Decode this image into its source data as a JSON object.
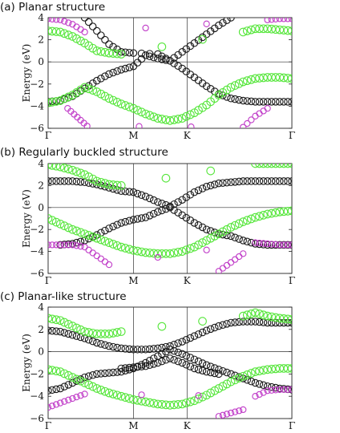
{
  "colors": {
    "black_band": "#1a1a1a",
    "green_band": "#55e63a",
    "magenta_band": "#c03cc8",
    "grey_band": "#b8b8b8"
  },
  "chart_data": [
    {
      "type": "scatter",
      "title": "(a) Planar structure",
      "ylabel": "Energy (eV)",
      "ylim": [
        -6,
        4
      ],
      "yticks": [
        -6,
        -4,
        -2,
        0,
        2,
        4
      ],
      "xticks": [
        "Γ",
        "M",
        "K",
        "Γ"
      ],
      "grid": false,
      "series": [
        {
          "color": "black",
          "x": [
            0,
            0.05,
            0.1,
            0.15,
            0.2,
            0.25,
            0.3,
            0.35,
            0.4,
            0.45,
            0.5,
            0.55,
            0.6,
            0.65,
            0.7,
            0.75,
            0.8,
            0.85,
            0.9,
            0.95,
            1
          ],
          "y": [
            -3.6,
            -3.5,
            -3.1,
            -2.4,
            -1.7,
            -1.1,
            -0.7,
            -0.4,
            0.6,
            0.3,
            0.1,
            -0.6,
            -1.4,
            -2.2,
            -2.9,
            -3.3,
            -3.5,
            -3.6,
            -3.6,
            -3.6,
            -3.6
          ]
        },
        {
          "color": "black",
          "x": [
            0.15,
            0.2,
            0.25,
            0.3,
            0.35,
            0.45,
            0.5,
            0.55,
            0.6,
            0.65,
            0.7,
            0.75
          ],
          "y": [
            4.0,
            2.8,
            1.6,
            0.9,
            0.8,
            0.7,
            0.1,
            0.9,
            1.7,
            2.5,
            3.3,
            4.0
          ]
        },
        {
          "color": "green",
          "x": [
            0,
            0.05,
            0.1,
            0.15,
            0.2,
            0.25,
            0.3,
            0.35,
            0.4,
            0.45,
            0.5,
            0.55,
            0.6,
            0.65,
            0.7,
            0.75,
            0.8,
            0.85,
            0.9,
            0.95,
            1
          ],
          "y": [
            -3.7,
            -3.5,
            -3.0,
            -2.3,
            -2.7,
            -3.3,
            -3.8,
            -4.2,
            -4.7,
            -5.1,
            -5.3,
            -5.1,
            -4.6,
            -3.9,
            -3.0,
            -2.3,
            -1.8,
            -1.5,
            -1.4,
            -1.4,
            -1.5
          ]
        },
        {
          "color": "green",
          "x": [
            0,
            0.05,
            0.1,
            0.15,
            0.2,
            0.25,
            0.3,
            0.8,
            0.85,
            0.9,
            0.95,
            1
          ],
          "y": [
            2.8,
            2.7,
            2.3,
            1.7,
            1.0,
            0.8,
            0.7,
            2.7,
            3.0,
            3.0,
            2.9,
            2.8
          ]
        },
        {
          "color": "magenta",
          "x": [
            0,
            0.05,
            0.1,
            0.15,
            0.9,
            0.95,
            1
          ],
          "y": [
            3.9,
            3.8,
            3.4,
            2.7,
            3.8,
            3.9,
            3.9
          ]
        },
        {
          "color": "magenta",
          "x": [
            0.08,
            0.12,
            0.16,
            0.8,
            0.85,
            0.9
          ],
          "y": [
            -4.2,
            -5.0,
            -5.8,
            -5.9,
            -4.9,
            -4.2
          ]
        }
      ]
    },
    {
      "type": "scatter",
      "title": "(b) Regularly buckled structure",
      "ylabel": "Energy (eV)",
      "ylim": [
        -6,
        4
      ],
      "yticks": [
        -6,
        -4,
        -2,
        0,
        2,
        4
      ],
      "xticks": [
        "Γ",
        "M",
        "K",
        "Γ"
      ],
      "grid": false,
      "series": [
        {
          "color": "black",
          "x": [
            0,
            0.05,
            0.1,
            0.15,
            0.2,
            0.25,
            0.3,
            0.35,
            0.4,
            0.45,
            0.5,
            0.55,
            0.6,
            0.65,
            0.7,
            0.75,
            0.8,
            0.85,
            0.9,
            0.95,
            1
          ],
          "y": [
            2.4,
            2.4,
            2.4,
            2.3,
            2.1,
            1.8,
            1.5,
            1.4,
            1.0,
            0.5,
            0.1,
            0.7,
            1.4,
            1.9,
            2.2,
            2.3,
            2.4,
            2.4,
            2.4,
            2.4,
            2.4
          ]
        },
        {
          "color": "black",
          "x": [
            0.05,
            0.1,
            0.15,
            0.2,
            0.25,
            0.3,
            0.35,
            0.4,
            0.45,
            0.5,
            0.55,
            0.6,
            0.65,
            0.7,
            0.75,
            0.8,
            0.85,
            0.9,
            0.95,
            1
          ],
          "y": [
            -3.4,
            -3.3,
            -3.0,
            -2.5,
            -1.9,
            -1.4,
            -1.1,
            -0.9,
            -0.4,
            0.0,
            -0.7,
            -1.4,
            -2.0,
            -2.4,
            -2.6,
            -3.0,
            -3.3,
            -3.4,
            -3.4,
            -3.4
          ]
        },
        {
          "color": "green",
          "x": [
            0,
            0.05,
            0.1,
            0.15,
            0.2,
            0.25,
            0.3,
            0.35,
            0.4,
            0.45,
            0.5,
            0.55,
            0.6,
            0.65,
            0.7,
            0.75,
            0.8,
            0.85,
            0.9,
            0.95,
            1
          ],
          "y": [
            -1.0,
            -1.5,
            -2.0,
            -2.4,
            -2.8,
            -3.2,
            -3.6,
            -3.9,
            -4.1,
            -4.2,
            -4.2,
            -4.0,
            -3.6,
            -3.0,
            -2.4,
            -1.8,
            -1.3,
            -0.9,
            -0.6,
            -0.4,
            -0.3
          ]
        },
        {
          "color": "green",
          "x": [
            0,
            0.05,
            0.1,
            0.15,
            0.2,
            0.25,
            0.3,
            0.85,
            0.9,
            0.95,
            1
          ],
          "y": [
            3.9,
            3.7,
            3.4,
            3.0,
            2.4,
            2.1,
            2.0,
            4.0,
            4.0,
            4.0,
            4.0
          ]
        },
        {
          "color": "magenta",
          "x": [
            0,
            0.05,
            0.1,
            0.15,
            0.2,
            0.25,
            0.85,
            0.9,
            0.95,
            1
          ],
          "y": [
            -3.4,
            -3.4,
            -3.4,
            -3.6,
            -4.4,
            -5.2,
            -3.2,
            -3.3,
            -3.4,
            -3.4
          ]
        },
        {
          "color": "magenta",
          "x": [
            0.7,
            0.75,
            0.8
          ],
          "y": [
            -5.8,
            -5.0,
            -4.2
          ]
        }
      ]
    },
    {
      "type": "scatter",
      "title": "(c) Planar-like structure",
      "ylabel": "Energy (eV)",
      "ylim": [
        -6,
        4
      ],
      "yticks": [
        -6,
        -4,
        -2,
        0,
        2,
        4
      ],
      "xticks": [
        "Γ",
        "M",
        "K",
        "Γ"
      ],
      "grid": false,
      "series": [
        {
          "color": "black",
          "x": [
            0,
            0.05,
            0.1,
            0.15,
            0.2,
            0.25,
            0.3,
            0.35,
            0.4,
            0.45,
            0.5,
            0.55,
            0.6,
            0.65,
            0.7,
            0.75,
            0.8,
            0.85,
            0.9,
            0.95,
            1
          ],
          "y": [
            1.9,
            1.8,
            1.5,
            1.2,
            0.8,
            0.5,
            0.3,
            0.2,
            0.2,
            0.3,
            0.5,
            0.9,
            1.4,
            1.9,
            2.3,
            2.6,
            2.7,
            2.7,
            2.6,
            2.6,
            2.6
          ]
        },
        {
          "color": "black",
          "x": [
            0,
            0.05,
            0.1,
            0.15,
            0.2,
            0.25,
            0.3,
            0.35,
            0.4,
            0.45,
            0.5,
            0.55,
            0.6,
            0.65,
            0.7,
            0.75,
            0.8,
            0.85,
            0.9,
            0.95,
            1
          ],
          "y": [
            -3.5,
            -3.3,
            -2.8,
            -2.3,
            -2.0,
            -1.9,
            -1.8,
            -1.5,
            -1.0,
            -0.4,
            0.2,
            -0.2,
            -0.7,
            -1.2,
            -1.6,
            -2.0,
            -2.4,
            -2.8,
            -3.1,
            -3.3,
            -3.4
          ]
        },
        {
          "color": "black",
          "x": [
            0.3,
            0.35,
            0.4,
            0.45,
            0.5,
            0.55,
            0.6,
            0.65,
            0.7
          ],
          "y": [
            -1.5,
            -1.4,
            -1.3,
            -1.0,
            -0.6,
            -1.0,
            -1.5,
            -1.8,
            -2.0
          ]
        },
        {
          "color": "green",
          "x": [
            0,
            0.05,
            0.1,
            0.15,
            0.2,
            0.25,
            0.3,
            0.35,
            0.4,
            0.45,
            0.5,
            0.55,
            0.6,
            0.65,
            0.7,
            0.75,
            0.8,
            0.85,
            0.9,
            0.95,
            1
          ],
          "y": [
            -1.6,
            -1.8,
            -2.3,
            -2.8,
            -3.3,
            -3.7,
            -4.0,
            -4.3,
            -4.5,
            -4.7,
            -4.8,
            -4.7,
            -4.4,
            -3.9,
            -3.3,
            -2.7,
            -2.2,
            -1.8,
            -1.6,
            -1.5,
            -1.5
          ]
        },
        {
          "color": "green",
          "x": [
            0,
            0.05,
            0.1,
            0.15,
            0.2,
            0.25,
            0.3,
            0.8,
            0.85,
            0.9,
            0.95,
            1
          ],
          "y": [
            3.0,
            2.8,
            2.3,
            1.8,
            1.6,
            1.6,
            1.8,
            3.2,
            3.5,
            3.2,
            3.0,
            2.9
          ]
        },
        {
          "color": "magenta",
          "x": [
            0,
            0.05,
            0.1,
            0.15,
            0.85,
            0.9,
            0.95,
            1
          ],
          "y": [
            -5.0,
            -4.6,
            -4.2,
            -3.8,
            -4.0,
            -3.5,
            -3.4,
            -3.4
          ]
        },
        {
          "color": "magenta",
          "x": [
            0.7,
            0.75,
            0.8
          ],
          "y": [
            -5.8,
            -5.5,
            -5.2
          ]
        }
      ]
    }
  ]
}
